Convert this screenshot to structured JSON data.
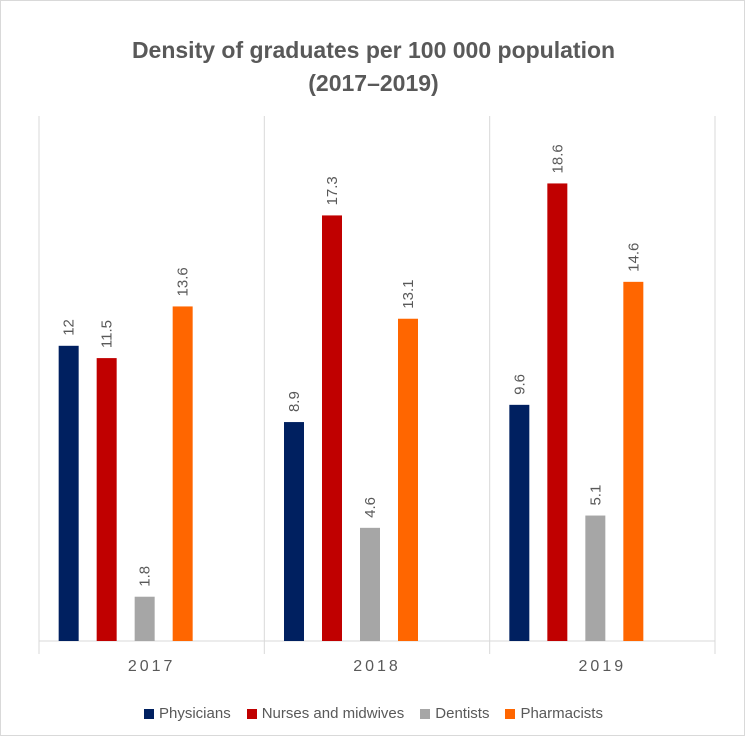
{
  "chart_data": {
    "type": "bar",
    "title": [
      "Density of graduates per 100 000 population",
      "(2017–2019)"
    ],
    "categories": [
      "2017",
      "2018",
      "2019"
    ],
    "series": [
      {
        "name": "Physicians",
        "color": "#002060",
        "values": [
          12,
          8.9,
          9.6
        ],
        "labels": [
          "12",
          "8.9",
          "9.6"
        ]
      },
      {
        "name": "Nurses and midwives",
        "color": "#c00000",
        "values": [
          11.5,
          17.3,
          18.6
        ],
        "labels": [
          "11.5",
          "17.3",
          "18.6"
        ]
      },
      {
        "name": "Dentists",
        "color": "#a6a6a6",
        "values": [
          1.8,
          4.6,
          5.1
        ],
        "labels": [
          "1.8",
          "4.6",
          "5.1"
        ]
      },
      {
        "name": "Pharmacists",
        "color": "#ff6600",
        "values": [
          13.6,
          13.1,
          14.6
        ],
        "labels": [
          "13.6",
          "13.1",
          "14.6"
        ]
      }
    ],
    "ylim": [
      0,
      20
    ],
    "grid": false,
    "legend": "bottom",
    "xlabel": "",
    "ylabel": ""
  }
}
